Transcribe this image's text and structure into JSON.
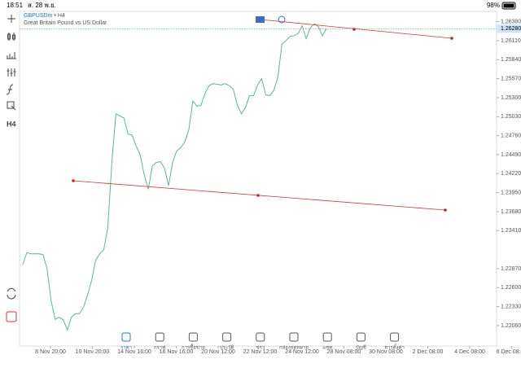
{
  "status_bar": {
    "time": "18:51",
    "date": "ส. 28 พ.ย.",
    "battery": "98%"
  },
  "chart_data": {
    "type": "line",
    "symbol": "GBPUSDm",
    "timeframe": "H4",
    "subtitle": "Great Britain Pound vs US Dollar",
    "color": "#5cb98a",
    "values": [
      1.2293,
      1.231,
      1.2308,
      1.2308,
      1.2308,
      1.2307,
      1.2287,
      1.2241,
      1.2215,
      1.2218,
      1.2214,
      1.22,
      1.2218,
      1.2223,
      1.2223,
      1.2232,
      1.225,
      1.227,
      1.2299,
      1.2308,
      1.2314,
      1.2345,
      1.2438,
      1.2507,
      1.2504,
      1.2501,
      1.2478,
      1.2477,
      1.2461,
      1.2449,
      1.242,
      1.24,
      1.2433,
      1.2438,
      1.2439,
      1.243,
      1.2405,
      1.2438,
      1.2454,
      1.2459,
      1.2467,
      1.2484,
      1.2525,
      1.2518,
      1.2519,
      1.2536,
      1.2547,
      1.255,
      1.2549,
      1.2548,
      1.255,
      1.2547,
      1.2542,
      1.2519,
      1.2507,
      1.2516,
      1.2533,
      1.2533,
      1.2548,
      1.2557,
      1.2534,
      1.2533,
      1.254,
      1.2559,
      1.2606,
      1.2611,
      1.2617,
      1.2618,
      1.2621,
      1.2632,
      1.2614,
      1.2629,
      1.2635,
      1.2631,
      1.2618,
      1.2628
    ],
    "x_labels": [
      "8 Nov 20:00",
      "10 Nov 20:00",
      "14 Nov 16:00",
      "16 Nov 16:00",
      "20 Nov 12:00",
      "22 Nov 12:00",
      "24 Nov 12:00",
      "28 Nov 08:00",
      "30 Nov 08:00",
      "2 Dec 08:00",
      "4 Dec 08:00",
      "6 Dec 08:00"
    ],
    "ylim": [
      1.2177,
      1.2648
    ],
    "yticks": [
      {
        "value": 1.2638,
        "label": "1.26380"
      },
      {
        "value": 1.2611,
        "label": "1.26110"
      },
      {
        "value": 1.2584,
        "label": "1.25840"
      },
      {
        "value": 1.2557,
        "label": "1.25570"
      },
      {
        "value": 1.253,
        "label": "1.25300"
      },
      {
        "value": 1.2503,
        "label": "1.25030"
      },
      {
        "value": 1.2476,
        "label": "1.24760"
      },
      {
        "value": 1.2449,
        "label": "1.24490"
      },
      {
        "value": 1.2422,
        "label": "1.24220"
      },
      {
        "value": 1.2395,
        "label": "1.23950"
      },
      {
        "value": 1.2368,
        "label": "1.23680"
      },
      {
        "value": 1.2341,
        "label": "1.23410"
      },
      {
        "value": 1.2287,
        "label": "1.22870"
      },
      {
        "value": 1.226,
        "label": "1.22600"
      },
      {
        "value": 1.2233,
        "label": "1.22330"
      },
      {
        "value": 1.2206,
        "label": "1.22060"
      }
    ],
    "current_price": {
      "value": 1.2628,
      "label": "1.26280"
    }
  },
  "nav": [
    {
      "label": "ราคา",
      "active": true
    },
    {
      "label": "กราฟ",
      "active": false
    },
    {
      "label": "การซื้อขาย",
      "active": false
    },
    {
      "label": "ประวัติ",
      "active": false
    },
    {
      "label": "ข่าว",
      "active": false
    },
    {
      "label": "กล่องจดหมาย",
      "active": false
    },
    {
      "label": "แชท",
      "active": false
    },
    {
      "label": "บัญชี",
      "active": false
    },
    {
      "label": "การตั้งค่า",
      "active": false
    }
  ]
}
